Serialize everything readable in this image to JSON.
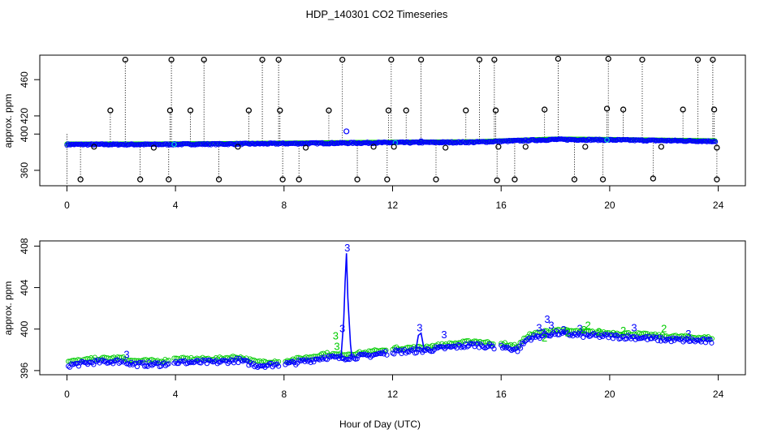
{
  "title": "HDP_140301  CO2 Timeseries",
  "xlabel": "Hour of Day (UTC)",
  "chart_data": [
    {
      "type": "scatter",
      "ylabel": "approx. ppm",
      "xlim": [
        -1,
        25
      ],
      "ylim": [
        343,
        487
      ],
      "xticks": [
        0,
        4,
        8,
        12,
        16,
        20,
        24
      ],
      "yticks": [
        360,
        400,
        420,
        460
      ],
      "colors": {
        "raw": "#000000",
        "main": "#0000ff",
        "alt": "#00cc00",
        "alt2": "#00cccc"
      },
      "baseline": [
        [
          0,
          388.5
        ],
        [
          3,
          388.5
        ],
        [
          6,
          389
        ],
        [
          8,
          389.5
        ],
        [
          12,
          390.5
        ],
        [
          15,
          391
        ],
        [
          16,
          392
        ],
        [
          18,
          394
        ],
        [
          20,
          393.5
        ],
        [
          24,
          392
        ]
      ],
      "spikes": {
        "high": [
          [
            2.15,
            482
          ],
          [
            3.85,
            482
          ],
          [
            5.05,
            482
          ],
          [
            7.2,
            482
          ],
          [
            7.8,
            482
          ],
          [
            10.15,
            482
          ],
          [
            11.95,
            482
          ],
          [
            13.05,
            482
          ],
          [
            15.2,
            482
          ],
          [
            15.75,
            482
          ],
          [
            18.1,
            483
          ],
          [
            19.95,
            483
          ],
          [
            21.2,
            482
          ],
          [
            23.25,
            482
          ],
          [
            23.8,
            482
          ]
        ],
        "mid": [
          [
            1.6,
            426
          ],
          [
            3.8,
            426
          ],
          [
            4.55,
            426
          ],
          [
            6.7,
            426
          ],
          [
            7.85,
            426
          ],
          [
            9.65,
            426
          ],
          [
            11.85,
            426
          ],
          [
            12.5,
            426
          ],
          [
            14.7,
            426
          ],
          [
            15.8,
            426
          ],
          [
            17.6,
            427
          ],
          [
            19.9,
            428
          ],
          [
            20.5,
            427
          ],
          [
            22.7,
            427
          ],
          [
            23.85,
            427
          ]
        ],
        "low": [
          [
            0.5,
            350
          ],
          [
            2.7,
            350
          ],
          [
            3.75,
            350
          ],
          [
            5.6,
            350
          ],
          [
            7.95,
            350
          ],
          [
            8.55,
            350
          ],
          [
            10.7,
            350
          ],
          [
            11.8,
            350
          ],
          [
            13.6,
            350
          ],
          [
            15.85,
            349
          ],
          [
            16.5,
            350
          ],
          [
            18.7,
            350
          ],
          [
            19.75,
            350
          ],
          [
            21.6,
            351
          ],
          [
            23.95,
            350
          ]
        ]
      },
      "blips": [
        [
          10.3,
          403
        ],
        [
          13.05,
          392
        ],
        [
          13.85,
          391
        ]
      ],
      "end_marker": [
        23.95,
        385
      ]
    },
    {
      "type": "scatter",
      "ylabel": "approx. ppm",
      "xlim": [
        -1,
        25
      ],
      "ylim": [
        395.6,
        408.5
      ],
      "xticks": [
        0,
        4,
        8,
        12,
        16,
        20,
        24
      ],
      "yticks": [
        396,
        400,
        404,
        408
      ],
      "segments": [
        [
          0.05,
          2.1
        ],
        [
          2.15,
          3.8
        ],
        [
          3.95,
          7.85
        ],
        [
          8.05,
          11.8
        ],
        [
          12.0,
          15.75
        ],
        [
          16.0,
          23.8
        ]
      ],
      "profile": [
        [
          0,
          396.5
        ],
        [
          1,
          396.8
        ],
        [
          2,
          396.9
        ],
        [
          2.5,
          396.6
        ],
        [
          3.5,
          396.6
        ],
        [
          4,
          396.8
        ],
        [
          5.5,
          396.8
        ],
        [
          6.3,
          397.0
        ],
        [
          7,
          396.5
        ],
        [
          8,
          396.6
        ],
        [
          9,
          397.0
        ],
        [
          9.5,
          397.3
        ],
        [
          10,
          397.2
        ],
        [
          11,
          397.4
        ],
        [
          12,
          397.8
        ],
        [
          13,
          397.9
        ],
        [
          14,
          398.2
        ],
        [
          15,
          398.5
        ],
        [
          15.7,
          398.3
        ],
        [
          16,
          398.3
        ],
        [
          16.6,
          398.0
        ],
        [
          17,
          399.1
        ],
        [
          18,
          399.6
        ],
        [
          19,
          399.4
        ],
        [
          20,
          399.3
        ],
        [
          21,
          399.2
        ],
        [
          22,
          399.0
        ],
        [
          23,
          398.9
        ],
        [
          23.8,
          398.8
        ]
      ],
      "peak": [
        [
          10.1,
          397.3
        ],
        [
          10.2,
          400.8
        ],
        [
          10.25,
          404.5
        ],
        [
          10.3,
          407.3
        ],
        [
          10.35,
          403
        ],
        [
          10.45,
          398.5
        ],
        [
          10.5,
          397.3
        ]
      ],
      "bump": [
        [
          12.85,
          397.9
        ],
        [
          12.95,
          399.4
        ],
        [
          13.05,
          399.6
        ],
        [
          13.15,
          398.2
        ],
        [
          13.25,
          397.9
        ]
      ],
      "labels": [
        {
          "x": 2.2,
          "y": 397.2,
          "text": "3",
          "color": "blue"
        },
        {
          "x": 9.9,
          "y": 399.0,
          "text": "3",
          "color": "green"
        },
        {
          "x": 9.95,
          "y": 398.0,
          "text": "3",
          "color": "green"
        },
        {
          "x": 10.15,
          "y": 399.7,
          "text": "3",
          "color": "blue"
        },
        {
          "x": 10.33,
          "y": 407.5,
          "text": "3",
          "color": "blue"
        },
        {
          "x": 13.0,
          "y": 399.8,
          "text": "3",
          "color": "blue"
        },
        {
          "x": 13.9,
          "y": 399.1,
          "text": "3",
          "color": "blue"
        },
        {
          "x": 17.4,
          "y": 399.8,
          "text": "3",
          "color": "blue"
        },
        {
          "x": 17.55,
          "y": 399.3,
          "text": "3",
          "color": "blue"
        },
        {
          "x": 17.7,
          "y": 400.6,
          "text": "3",
          "color": "blue"
        },
        {
          "x": 17.85,
          "y": 400.0,
          "text": "3",
          "color": "blue"
        },
        {
          "x": 17.6,
          "y": 398.8,
          "text": "2",
          "color": "green"
        },
        {
          "x": 18.3,
          "y": 399.6,
          "text": "3",
          "color": "blue"
        },
        {
          "x": 18.45,
          "y": 399.3,
          "text": "2",
          "color": "green"
        },
        {
          "x": 18.9,
          "y": 399.7,
          "text": "3",
          "color": "blue"
        },
        {
          "x": 19.05,
          "y": 399.6,
          "text": "2",
          "color": "green"
        },
        {
          "x": 19.2,
          "y": 400.0,
          "text": "2",
          "color": "green"
        },
        {
          "x": 19.6,
          "y": 399.4,
          "text": "2",
          "color": "green"
        },
        {
          "x": 20.5,
          "y": 399.5,
          "text": "2",
          "color": "green"
        },
        {
          "x": 20.9,
          "y": 399.8,
          "text": "3",
          "color": "blue"
        },
        {
          "x": 22.0,
          "y": 399.7,
          "text": "2",
          "color": "green"
        },
        {
          "x": 22.9,
          "y": 399.2,
          "text": "3",
          "color": "blue"
        }
      ]
    }
  ]
}
